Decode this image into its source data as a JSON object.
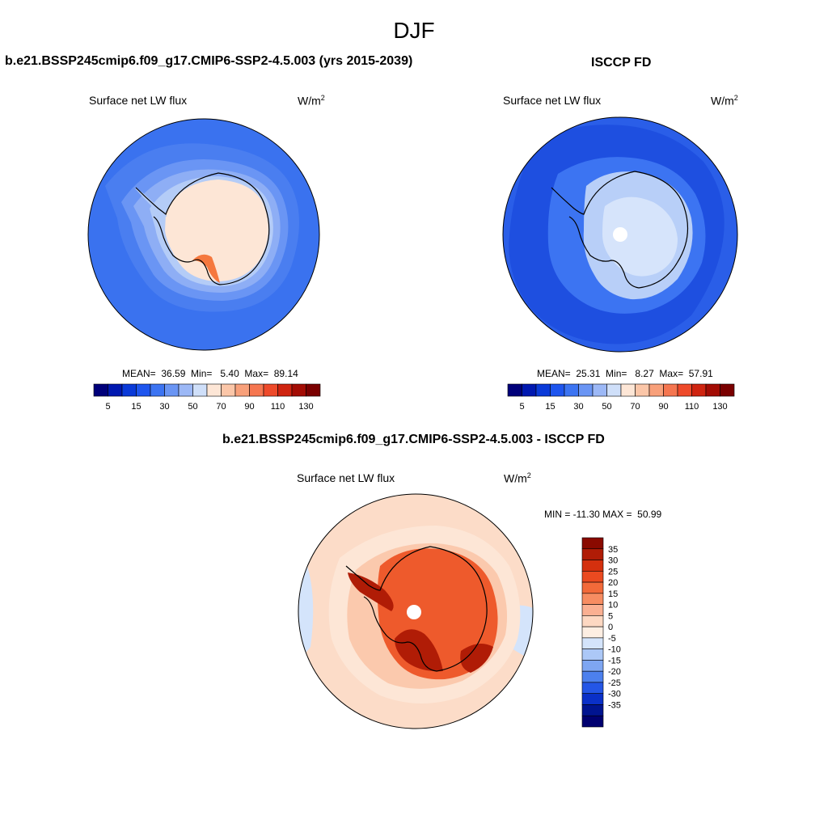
{
  "main_title": "DJF",
  "panels": [
    {
      "title": "b.e21.BSSP245cmip6.f09_g17.CMIP6-SSP2-4.5.003 (yrs 2015-2039)",
      "variable": "Surface net LW flux",
      "units_base": "W/m",
      "units_exp": "2",
      "stats_text": "MEAN=  36.59  Min=   5.40  Max=  89.14"
    },
    {
      "title": "ISCCP FD",
      "variable": "Surface net LW flux",
      "units_base": "W/m",
      "units_exp": "2",
      "stats_text": "MEAN=  25.31  Min=   8.27  Max=  57.91"
    },
    {
      "title": "b.e21.BSSP245cmip6.f09_g17.CMIP6-SSP2-4.5.003 - ISCCP FD",
      "variable": "Surface net LW flux",
      "units_base": "W/m",
      "units_exp": "2",
      "stats_text": "MIN = -11.30 MAX =  50.99"
    }
  ],
  "chart_data": [
    {
      "type": "heatmap",
      "projection": "south-polar-stereographic",
      "title": "b.e21.BSSP245cmip6.f09_g17.CMIP6-SSP2-4.5.003 (yrs 2015-2039)",
      "variable": "Surface net LW flux",
      "units": "W/m2",
      "mean": 36.59,
      "min": 5.4,
      "max": 89.14,
      "colorbar": {
        "orientation": "horizontal",
        "levels": [
          5,
          10,
          15,
          20,
          30,
          40,
          50,
          60,
          70,
          80,
          90,
          100,
          110,
          120,
          130
        ],
        "tick_labels": [
          "5",
          "15",
          "30",
          "50",
          "70",
          "90",
          "110",
          "130"
        ],
        "colors": [
          "#00007a",
          "#0018b0",
          "#0a3ad8",
          "#1e55ee",
          "#3c74f2",
          "#6a95f4",
          "#9cb8f6",
          "#cfdff9",
          "#fde6d6",
          "#fbc6a8",
          "#f8a07a",
          "#f57650",
          "#ee4a2a",
          "#cf2410",
          "#a30c04",
          "#7a0000"
        ]
      },
      "regions": {
        "southern_ocean": "#3a72ef",
        "ocean_bands": [
          "#4a7ef0",
          "#6a95f4",
          "#8eaef5",
          "#b4ccf7"
        ],
        "antarctica": "#fde6d6",
        "peninsula_edge": "#f5783e"
      }
    },
    {
      "type": "heatmap",
      "projection": "south-polar-stereographic",
      "title": "ISCCP FD",
      "variable": "Surface net LW flux",
      "units": "W/m2",
      "mean": 25.31,
      "min": 8.27,
      "max": 57.91,
      "colorbar": {
        "orientation": "horizontal",
        "levels": [
          5,
          10,
          15,
          20,
          30,
          40,
          50,
          60,
          70,
          80,
          90,
          100,
          110,
          120,
          130
        ],
        "tick_labels": [
          "5",
          "15",
          "30",
          "50",
          "70",
          "90",
          "110",
          "130"
        ],
        "colors": [
          "#00007a",
          "#0018b0",
          "#0a3ad8",
          "#1e55ee",
          "#3c74f2",
          "#6a95f4",
          "#9cb8f6",
          "#cfdff9",
          "#fde6d6",
          "#fbc6a8",
          "#f8a07a",
          "#f57650",
          "#ee4a2a",
          "#cf2410",
          "#a30c04",
          "#7a0000"
        ]
      },
      "regions": {
        "southern_ocean": "#2a5ee8",
        "ocean_bands": [
          "#1e4fe0",
          "#3c74f2",
          "#6a95f4",
          "#9cb8f6"
        ],
        "antarctica": "#b8cff8",
        "interior": "#d6e4fb",
        "pole_missing": "#ffffff"
      }
    },
    {
      "type": "heatmap",
      "projection": "south-polar-stereographic",
      "title": "b.e21.BSSP245cmip6.f09_g17.CMIP6-SSP2-4.5.003 - ISCCP FD",
      "variable": "Surface net LW flux",
      "units": "W/m2",
      "min": -11.3,
      "max": 50.99,
      "colorbar": {
        "orientation": "vertical",
        "levels": [
          35,
          30,
          25,
          20,
          15,
          10,
          5,
          0,
          -5,
          -10,
          -15,
          -20,
          -25,
          -30,
          -35
        ],
        "tick_labels": [
          "35",
          "30",
          "25",
          "20",
          "15",
          "10",
          "5",
          "0",
          "-5",
          "-10",
          "-15",
          "-20",
          "-25",
          "-30",
          "-35"
        ],
        "colors": [
          "#8a0a00",
          "#b01c06",
          "#d4300e",
          "#ea4a20",
          "#f26a3a",
          "#f78d62",
          "#fab092",
          "#fdd8c2",
          "#fdeee2",
          "#d4e4fb",
          "#acc8f7",
          "#7ea6f2",
          "#4c80ee",
          "#2456e6",
          "#0a30c8",
          "#001490",
          "#000070"
        ]
      },
      "regions": {
        "southern_ocean": "#fcdcc8",
        "ocean_bands": [
          "#fde6d6",
          "#fbc9ad",
          "#fdeee2"
        ],
        "ocean_negative": "#d4e4fb",
        "antarctica": "#ee5a2c",
        "antarctica_high": "#b01c06",
        "pole_missing": "#ffffff"
      }
    }
  ]
}
